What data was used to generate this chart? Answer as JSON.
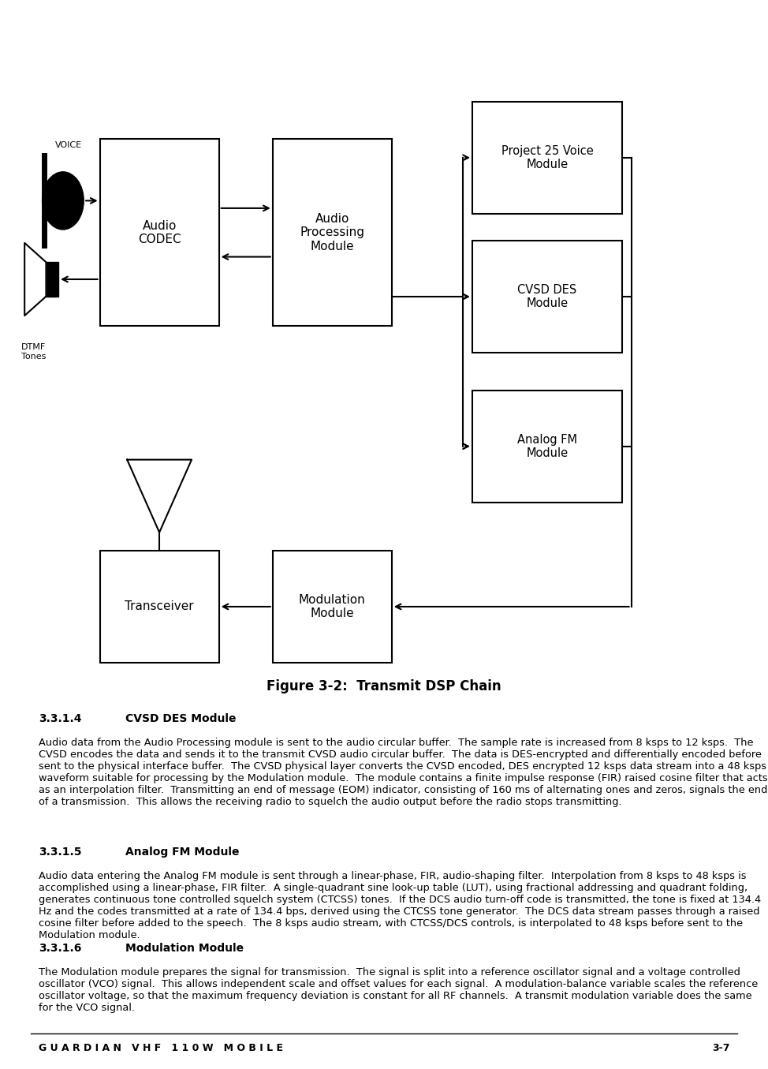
{
  "bg_color": "#ffffff",
  "box_edge_color": "#000000",
  "box_face_color": "#ffffff",
  "lw": 1.5,
  "arrow_color": "#000000",
  "text_color": "#000000",
  "diagram_title": "Figure 3-2:  Transmit DSP Chain",
  "section_314_num": "3.3.1.4",
  "section_314_head": "CVSD DES Module",
  "section_314_body": "Audio data from the Audio Processing module is sent to the audio circular buffer.  The sample rate is increased from 8 ksps to 12 ksps.  The CVSD encodes the data and sends it to the transmit CVSD audio circular buffer.  The data is DES-encrypted and differentially encoded before sent to the physical interface buffer.  The CVSD physical layer converts the CVSD encoded, DES encrypted 12 ksps data stream into a 48 ksps waveform suitable for processing by the Modulation module.  The module contains a finite impulse response (FIR) raised cosine filter that acts as an interpolation filter.  Transmitting an end of message (EOM) indicator, consisting of 160 ms of alternating ones and zeros, signals the end of a transmission.  This allows the receiving radio to squelch the audio output before the radio stops transmitting.",
  "section_315_num": "3.3.1.5",
  "section_315_head": "Analog FM Module",
  "section_315_body": "Audio data entering the Analog FM module is sent through a linear-phase, FIR, audio-shaping filter.  Interpolation from 8 ksps to 48 ksps is accomplished using a linear-phase, FIR filter.  A single-quadrant sine look-up table (LUT), using fractional addressing and quadrant folding, generates continuous tone controlled squelch system (CTCSS) tones.  If the DCS audio turn-off code is transmitted, the tone is fixed at 134.4 Hz and the codes transmitted at a rate of 134.4 bps, derived using the CTCSS tone generator.  The DCS data stream passes through a raised cosine filter before added to the speech.  The 8 ksps audio stream, with CTCSS/DCS controls, is interpolated to 48 ksps before sent to the Modulation module.",
  "section_316_num": "3.3.1.6",
  "section_316_head": "Modulation Module",
  "section_316_body": "The Modulation module prepares the signal for transmission.  The signal is split into a reference oscillator signal and a voltage controlled oscillator (VCO) signal.  This allows independent scale and offset values for each signal.  A modulation-balance variable scales the reference oscillator voltage, so that the maximum frequency deviation is constant for all RF channels.  A transmit modulation variable does the same for the VCO signal.",
  "footer_left": "G U A R D I A N   V H F   1 1 0 W   M O B I L E",
  "footer_right": "3-7"
}
